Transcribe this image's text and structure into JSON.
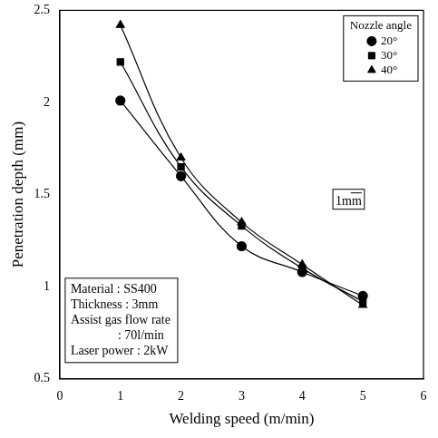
{
  "chart_data": {
    "type": "line",
    "x_label": "Welding speed (m/min)",
    "y_label": "Penetration depth (mm)",
    "x": [
      1,
      2,
      3,
      4,
      5
    ],
    "series": [
      {
        "name": "20°",
        "color": "#000000",
        "marker": "circle",
        "values": [
          2.01,
          1.6,
          1.22,
          1.08,
          0.95
        ]
      },
      {
        "name": "30°",
        "color": "#000000",
        "marker": "square",
        "values": [
          2.22,
          1.65,
          1.33,
          1.1,
          0.92
        ]
      },
      {
        "name": "40°",
        "color": "#000000",
        "marker": "triangle",
        "values": [
          2.42,
          1.7,
          1.35,
          1.12,
          0.9
        ]
      }
    ],
    "xlim": [
      0,
      6
    ],
    "xticks": [
      0,
      1,
      2,
      3,
      4,
      5,
      6
    ],
    "ylim": [
      0.5,
      2.5
    ],
    "yticks": [
      0.5,
      1,
      1.5,
      2,
      2.5
    ],
    "grid": false,
    "legend": "upper right",
    "legend_title": "Nozzle angle",
    "annotations": [
      "Material : SS400",
      "Thickness : 3mm",
      "Assist gas flow rate",
      ": 70l/min",
      "Laser power : 2kW"
    ],
    "scale_bar_label": "1mm"
  }
}
